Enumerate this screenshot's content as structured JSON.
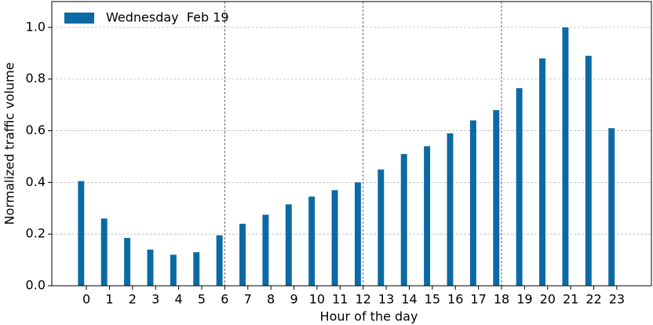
{
  "chart_data": {
    "type": "bar",
    "xlabel": "Hour of the day",
    "ylabel": "Normalized traffic volume",
    "x": [
      0,
      1,
      2,
      3,
      4,
      5,
      6,
      7,
      8,
      9,
      10,
      11,
      12,
      13,
      14,
      15,
      16,
      17,
      18,
      19,
      20,
      21,
      22,
      23
    ],
    "series": [
      {
        "name": "Wednesday  Feb 19",
        "color": "#0b6aa3",
        "values": [
          0.405,
          0.26,
          0.185,
          0.14,
          0.12,
          0.13,
          0.195,
          0.24,
          0.275,
          0.315,
          0.345,
          0.37,
          0.4,
          0.45,
          0.51,
          0.54,
          0.59,
          0.64,
          0.68,
          0.765,
          0.88,
          1.0,
          0.89,
          0.61
        ]
      }
    ],
    "xlim": [
      -1.5,
      24.5
    ],
    "xticks": [
      0,
      1,
      2,
      3,
      4,
      5,
      6,
      7,
      8,
      9,
      10,
      11,
      12,
      13,
      14,
      15,
      16,
      17,
      18,
      19,
      20,
      21,
      22,
      23
    ],
    "ylim": [
      0,
      1.1
    ],
    "yticks": [
      {
        "value": 0,
        "label": "0.0"
      },
      {
        "value": 0.2,
        "label": "0.2"
      },
      {
        "value": 0.4,
        "label": "0.4"
      },
      {
        "value": 0.6,
        "label": "0.6"
      },
      {
        "value": 0.8,
        "label": "0.8"
      },
      {
        "value": 1.0,
        "label": "1.0"
      }
    ],
    "vlines": [
      6,
      12,
      18
    ],
    "grid": true,
    "legend": "upper left"
  }
}
